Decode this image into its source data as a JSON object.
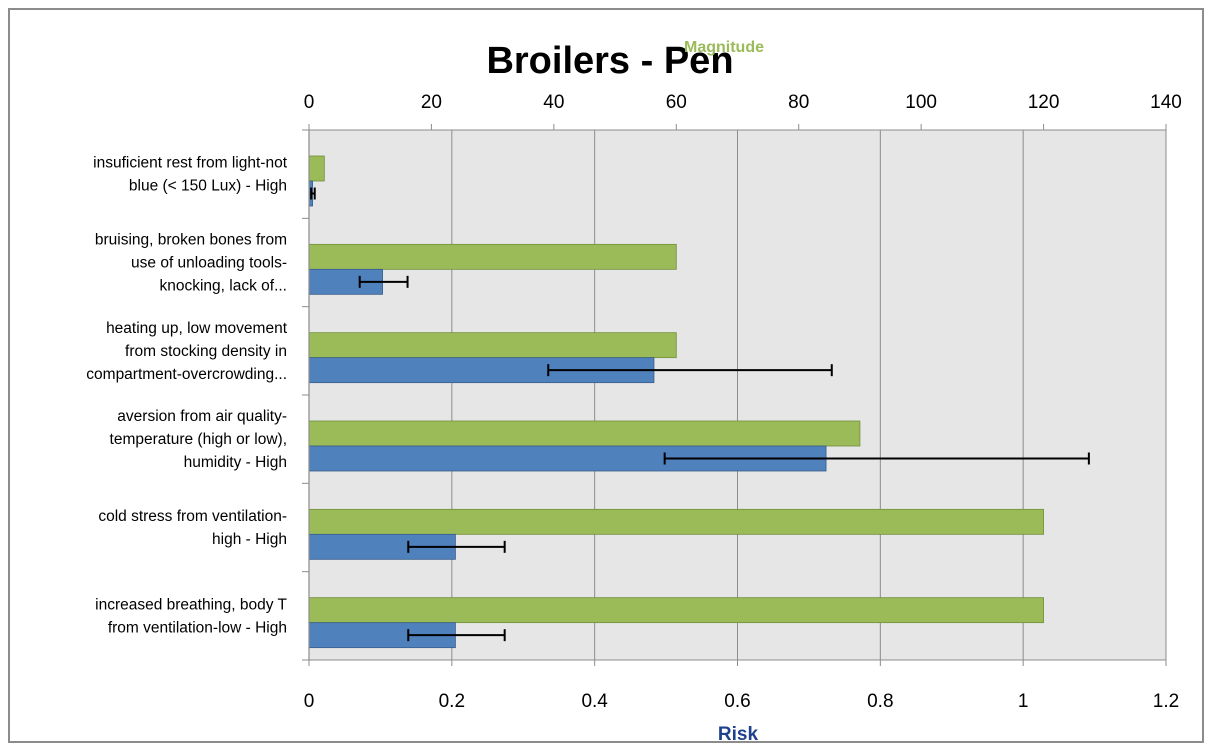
{
  "chart_data": {
    "type": "bar",
    "orientation": "horizontal",
    "title": "Broilers - Pen",
    "categories": [
      [
        "insuficient rest from light-not",
        "blue (< 150 Lux) - High"
      ],
      [
        "bruising, broken bones from",
        "use of unloading tools-",
        "knocking, lack of..."
      ],
      [
        "heating up, low movement",
        "from stocking density in",
        "compartment-overcrowding..."
      ],
      [
        "aversion from air quality-",
        "temperature (high or low),",
        "humidity - High"
      ],
      [
        "cold stress from ventilation-",
        "high  - High"
      ],
      [
        "increased breathing, body T",
        "from ventilation-low  - High"
      ]
    ],
    "top_axis": {
      "label": "Magnitude",
      "label_color": "#9bbb59",
      "range": [
        0,
        140
      ],
      "ticks": [
        "0",
        "20",
        "40",
        "60",
        "80",
        "100",
        "120",
        "140"
      ]
    },
    "bottom_axis": {
      "label": "Risk",
      "label_color": "#1f3f8f",
      "range": [
        0,
        1.2
      ],
      "ticks": [
        "0",
        "0.2",
        "0.4",
        "0.6",
        "0.8",
        "1",
        "1.2"
      ]
    },
    "series": [
      {
        "axis": "top",
        "color": "#9bbb59",
        "border": "#6f8f3a",
        "values": [
          2.5,
          60,
          60,
          90,
          120,
          120
        ]
      },
      {
        "axis": "bottom",
        "color": "#4f81bd",
        "border": "#385d8a",
        "values": [
          0.005,
          0.103,
          0.483,
          0.724,
          0.205,
          0.205
        ],
        "error_low": [
          0.003,
          0.071,
          0.335,
          0.498,
          0.139,
          0.139
        ],
        "error_high": [
          0.008,
          0.138,
          0.732,
          1.092,
          0.274,
          0.274
        ]
      }
    ],
    "grid": "vertical",
    "plot_background": "#e6e6e6"
  }
}
